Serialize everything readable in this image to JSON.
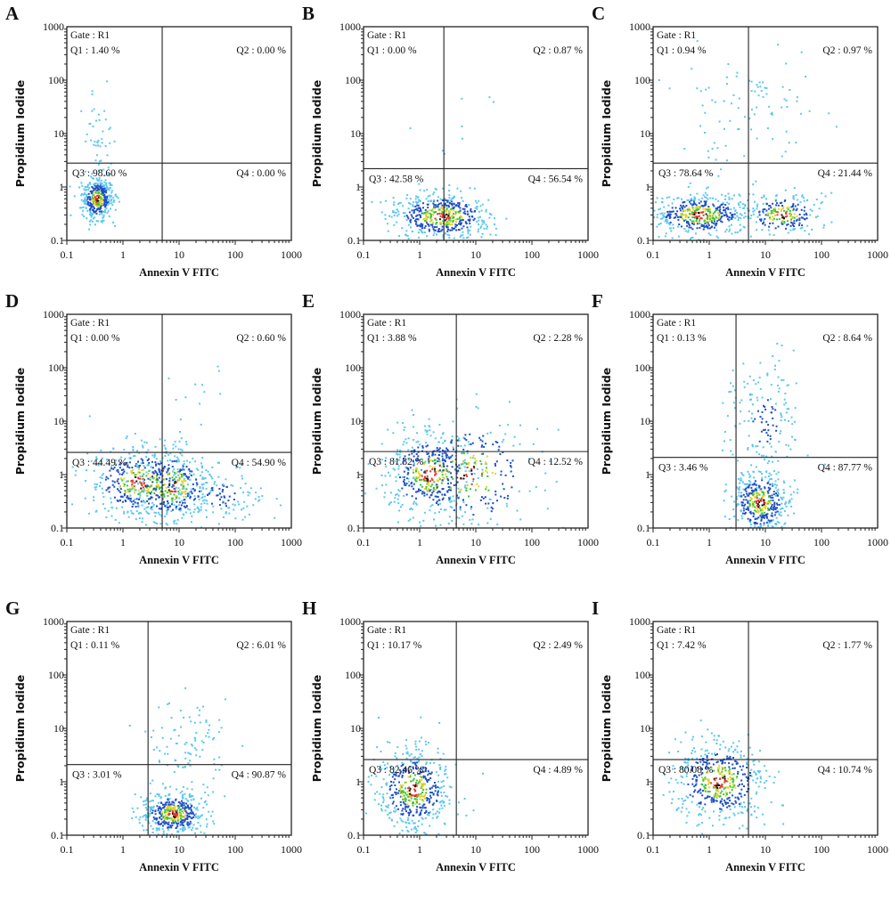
{
  "chart_data": [
    {
      "type": "scatter",
      "panel": "A",
      "xlabel": "Annexin V FITC",
      "ylabel": "Propidium Iodide",
      "xscale": "log",
      "yscale": "log",
      "xlim": [
        0.1,
        1000
      ],
      "ylim": [
        0.1,
        1000
      ],
      "x_ticks": [
        "0.1",
        "1",
        "10",
        "100",
        "1000"
      ],
      "y_ticks": [
        "0.1",
        "1",
        "10",
        "100",
        "1000"
      ],
      "gate": "Gate : R1",
      "gate_x": 5,
      "gate_y": 2.8,
      "quadrants": {
        "Q1": "Q1 : 1.40 %",
        "Q2": "Q2 : 0.00 %",
        "Q3": "Q3 : 98.60 %",
        "Q4": "Q4 : 0.00 %"
      },
      "populations": [
        {
          "x": 0.35,
          "y": 0.6,
          "sx": 0.14,
          "sy": 0.2,
          "n": 380
        },
        {
          "x": 0.35,
          "y": 8,
          "sx": 0.15,
          "sy": 0.35,
          "n": 45
        }
      ]
    },
    {
      "type": "scatter",
      "panel": "B",
      "xlabel": "Annexin V FITC",
      "ylabel": "Propidium Iodide",
      "xscale": "log",
      "yscale": "log",
      "xlim": [
        0.1,
        1000
      ],
      "ylim": [
        0.1,
        1000
      ],
      "x_ticks": [
        "0.1",
        "1",
        "10",
        "100",
        "1000"
      ],
      "y_ticks": [
        "0.1",
        "1",
        "10",
        "100",
        "1000"
      ],
      "gate": "Gate : R1",
      "gate_x": 2.7,
      "gate_y": 2.2,
      "quadrants": {
        "Q1": "Q1 : 0.00 %",
        "Q2": "Q2 : 0.87 %",
        "Q3": "Q3 : 42.58 %",
        "Q4": "Q4 : 56.54 %"
      },
      "populations": [
        {
          "x": 2.5,
          "y": 0.28,
          "sx": 0.45,
          "sy": 0.22,
          "n": 520
        },
        {
          "x": 6,
          "y": 30,
          "sx": 0.3,
          "sy": 0.5,
          "n": 8
        }
      ]
    },
    {
      "type": "scatter",
      "panel": "C",
      "xlabel": "Annexin V FITC",
      "ylabel": "Propidium Iodide",
      "xscale": "log",
      "yscale": "log",
      "xlim": [
        0.1,
        1000
      ],
      "ylim": [
        0.1,
        1000
      ],
      "x_ticks": [
        "0.1",
        "1",
        "10",
        "100",
        "1000"
      ],
      "y_ticks": [
        "0.1",
        "1",
        "10",
        "100",
        "1000"
      ],
      "gate": "Gate : R1",
      "gate_x": 5,
      "gate_y": 2.8,
      "quadrants": {
        "Q1": "Q1 : 0.94 %",
        "Q2": "Q2 : 0.97 %",
        "Q3": "Q3 : 78.64 %",
        "Q4": "Q4 : 21.44 %"
      },
      "populations": [
        {
          "x": 0.7,
          "y": 0.3,
          "sx": 0.45,
          "sy": 0.2,
          "n": 450
        },
        {
          "x": 20,
          "y": 0.3,
          "sx": 0.35,
          "sy": 0.2,
          "n": 220
        },
        {
          "x": 5,
          "y": 30,
          "sx": 0.6,
          "sy": 0.5,
          "n": 90
        }
      ]
    },
    {
      "type": "scatter",
      "panel": "D",
      "xlabel": "Annexin V FITC",
      "ylabel": "Propidium Iodide",
      "xscale": "log",
      "yscale": "log",
      "xlim": [
        0.1,
        1000
      ],
      "ylim": [
        0.1,
        1000
      ],
      "x_ticks": [
        "0.1",
        "1",
        "10",
        "100",
        "1000"
      ],
      "y_ticks": [
        "0.1",
        "1",
        "10",
        "100",
        "1000"
      ],
      "gate": "Gate : R1",
      "gate_x": 5,
      "gate_y": 2.6,
      "quadrants": {
        "Q1": "Q1 : 0.00 %",
        "Q2": "Q2 : 0.60 %",
        "Q3": "Q3 : 44.49 %",
        "Q4": "Q4 : 54.90 %"
      },
      "populations": [
        {
          "x": 2,
          "y": 0.7,
          "sx": 0.45,
          "sy": 0.35,
          "n": 420
        },
        {
          "x": 8,
          "y": 0.6,
          "sx": 0.35,
          "sy": 0.35,
          "n": 320
        },
        {
          "x": 60,
          "y": 0.4,
          "sx": 0.4,
          "sy": 0.3,
          "n": 120
        },
        {
          "x": 20,
          "y": 30,
          "sx": 0.3,
          "sy": 0.5,
          "n": 10
        }
      ]
    },
    {
      "type": "scatter",
      "panel": "E",
      "xlabel": "Annexin V FITC",
      "ylabel": "Propidium Iodide",
      "xscale": "log",
      "yscale": "log",
      "xlim": [
        0.1,
        1000
      ],
      "ylim": [
        0.1,
        1000
      ],
      "x_ticks": [
        "0.1",
        "1",
        "10",
        "100",
        "1000"
      ],
      "y_ticks": [
        "0.1",
        "1",
        "10",
        "100",
        "1000"
      ],
      "gate": "Gate : R1",
      "gate_x": 4.5,
      "gate_y": 2.7,
      "quadrants": {
        "Q1": "Q1 : 3.88 %",
        "Q2": "Q2 : 2.28 %",
        "Q3": "Q3 : 81.32 %",
        "Q4": "Q4 : 12.52 %"
      },
      "populations": [
        {
          "x": 1.5,
          "y": 1,
          "sx": 0.4,
          "sy": 0.4,
          "n": 450
        },
        {
          "x": 8,
          "y": 1,
          "sx": 0.6,
          "sy": 0.55,
          "n": 250
        }
      ]
    },
    {
      "type": "scatter",
      "panel": "F",
      "xlabel": "Annexin V FITC",
      "ylabel": "Propidium Iodide",
      "xscale": "log",
      "yscale": "log",
      "xlim": [
        0.1,
        1000
      ],
      "ylim": [
        0.1,
        1000
      ],
      "x_ticks": [
        "0.1",
        "1",
        "10",
        "100",
        "1000"
      ],
      "y_ticks": [
        "0.1",
        "1",
        "10",
        "100",
        "1000"
      ],
      "gate": "Gate : R1",
      "gate_x": 3,
      "gate_y": 2.1,
      "quadrants": {
        "Q1": "Q1 : 0.13 %",
        "Q2": "Q2 : 8.64 %",
        "Q3": "Q3 : 3.46 %",
        "Q4": "Q4 : 87.77 %"
      },
      "populations": [
        {
          "x": 8,
          "y": 0.3,
          "sx": 0.25,
          "sy": 0.3,
          "n": 420
        },
        {
          "x": 10,
          "y": 10,
          "sx": 0.35,
          "sy": 0.6,
          "n": 160
        }
      ]
    },
    {
      "type": "scatter",
      "panel": "G",
      "xlabel": "Annexin V FITC",
      "ylabel": "Propidium Iodide",
      "xscale": "log",
      "yscale": "log",
      "xlim": [
        0.1,
        1000
      ],
      "ylim": [
        0.1,
        1000
      ],
      "x_ticks": [
        "0.1",
        "1",
        "10",
        "100",
        "1000"
      ],
      "y_ticks": [
        "0.1",
        "1",
        "10",
        "100",
        "1000"
      ],
      "gate": "Gate : R1",
      "gate_x": 2.8,
      "gate_y": 2.1,
      "quadrants": {
        "Q1": "Q1 : 0.11 %",
        "Q2": "Q2 : 6.01 %",
        "Q3": "Q3 : 3.01 %",
        "Q4": "Q4 : 90.87 %"
      },
      "populations": [
        {
          "x": 8,
          "y": 0.25,
          "sx": 0.28,
          "sy": 0.2,
          "n": 450
        },
        {
          "x": 15,
          "y": 5,
          "sx": 0.35,
          "sy": 0.4,
          "n": 100
        }
      ]
    },
    {
      "type": "scatter",
      "panel": "H",
      "xlabel": "Annexin V FITC",
      "ylabel": "Propidium Iodide",
      "xscale": "log",
      "yscale": "log",
      "xlim": [
        0.1,
        1000
      ],
      "ylim": [
        0.1,
        1000
      ],
      "x_ticks": [
        "0.1",
        "1",
        "10",
        "100",
        "1000"
      ],
      "y_ticks": [
        "0.1",
        "1",
        "10",
        "100",
        "1000"
      ],
      "gate": "Gate : R1",
      "gate_x": 4.5,
      "gate_y": 2.6,
      "quadrants": {
        "Q1": "Q1 : 10.17 %",
        "Q2": "Q2 : 2.49 %",
        "Q3": "Q3 : 82.46 %",
        "Q4": "Q4 : 4.89 %"
      },
      "populations": [
        {
          "x": 0.8,
          "y": 0.7,
          "sx": 0.32,
          "sy": 0.38,
          "n": 500
        }
      ]
    },
    {
      "type": "scatter",
      "panel": "I",
      "xlabel": "Annexin V FITC",
      "ylabel": "Propidium Iodide",
      "xscale": "log",
      "yscale": "log",
      "xlim": [
        0.1,
        1000
      ],
      "ylim": [
        0.1,
        1000
      ],
      "x_ticks": [
        "0.1",
        "1",
        "10",
        "100",
        "1000"
      ],
      "y_ticks": [
        "0.1",
        "1",
        "10",
        "100",
        "1000"
      ],
      "gate": "Gate : R1",
      "gate_x": 5,
      "gate_y": 2.6,
      "quadrants": {
        "Q1": "Q1 : 7.42 %",
        "Q2": "Q2 : 1.77 %",
        "Q3": "Q3 : 80.08 %",
        "Q4": "Q4 : 10.74 %"
      },
      "populations": [
        {
          "x": 1.5,
          "y": 1,
          "sx": 0.42,
          "sy": 0.38,
          "n": 500
        }
      ]
    }
  ],
  "colors": {
    "sparse": "#5bc8ef",
    "medium": "#1e4fc8",
    "dense": "#3bc43b",
    "core": "#e8392a",
    "peak": "#111111",
    "frame": "#222222"
  }
}
